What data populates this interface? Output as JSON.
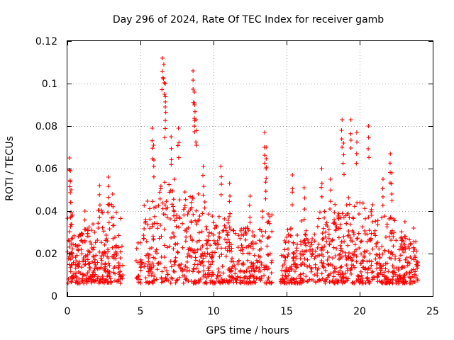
{
  "chart_data": {
    "type": "scatter",
    "title": "Day 296 of 2024, Rate Of TEC Index for receiver gamb",
    "xlabel": "GPS time / hours",
    "ylabel": "ROTI / TECUs",
    "xlim": [
      0,
      25
    ],
    "ylim": [
      0,
      0.12
    ],
    "xticks": [
      0,
      5,
      10,
      15,
      20,
      25
    ],
    "xtick_labels": [
      "0",
      "5",
      "10",
      "15",
      "20",
      "25"
    ],
    "yticks": [
      0,
      0.02,
      0.04,
      0.06,
      0.08,
      0.1,
      0.12
    ],
    "ytick_labels": [
      "0",
      "0.02",
      "0.04",
      "0.06",
      "0.08",
      "0.1",
      "0.12"
    ],
    "grid": true,
    "marker": "+",
    "series": [
      {
        "name": "ROTI",
        "color": "#ff0000",
        "baseline_range": [
          0.005,
          0.035
        ],
        "note": "dense cluster of + markers; baseline values mostly 0.005–0.035 TECU/min; gaps near 3.8–4.7 h and 5.0 h",
        "peaks": [
          {
            "x": 0.15,
            "y": 0.065
          },
          {
            "x": 0.2,
            "y": 0.059
          },
          {
            "x": 0.25,
            "y": 0.05
          },
          {
            "x": 1.2,
            "y": 0.04
          },
          {
            "x": 2.2,
            "y": 0.052
          },
          {
            "x": 2.8,
            "y": 0.056
          },
          {
            "x": 3.1,
            "y": 0.048
          },
          {
            "x": 5.8,
            "y": 0.079
          },
          {
            "x": 5.9,
            "y": 0.071
          },
          {
            "x": 6.5,
            "y": 0.112
          },
          {
            "x": 6.6,
            "y": 0.109
          },
          {
            "x": 6.7,
            "y": 0.1
          },
          {
            "x": 6.7,
            "y": 0.089
          },
          {
            "x": 7.1,
            "y": 0.075
          },
          {
            "x": 7.6,
            "y": 0.079
          },
          {
            "x": 8.6,
            "y": 0.106
          },
          {
            "x": 8.7,
            "y": 0.096
          },
          {
            "x": 8.7,
            "y": 0.09
          },
          {
            "x": 8.8,
            "y": 0.083
          },
          {
            "x": 9.3,
            "y": 0.061
          },
          {
            "x": 10.5,
            "y": 0.061
          },
          {
            "x": 11.1,
            "y": 0.053
          },
          {
            "x": 12.5,
            "y": 0.047
          },
          {
            "x": 13.5,
            "y": 0.077
          },
          {
            "x": 13.6,
            "y": 0.07
          },
          {
            "x": 13.6,
            "y": 0.06
          },
          {
            "x": 15.4,
            "y": 0.057
          },
          {
            "x": 16.2,
            "y": 0.051
          },
          {
            "x": 17.4,
            "y": 0.06
          },
          {
            "x": 18.0,
            "y": 0.055
          },
          {
            "x": 18.8,
            "y": 0.083
          },
          {
            "x": 18.9,
            "y": 0.072
          },
          {
            "x": 19.4,
            "y": 0.083
          },
          {
            "x": 19.8,
            "y": 0.077
          },
          {
            "x": 20.6,
            "y": 0.08
          },
          {
            "x": 21.6,
            "y": 0.055
          },
          {
            "x": 22.1,
            "y": 0.067
          },
          {
            "x": 22.2,
            "y": 0.058
          },
          {
            "x": 23.1,
            "y": 0.035
          },
          {
            "x": 23.7,
            "y": 0.032
          }
        ]
      }
    ]
  }
}
